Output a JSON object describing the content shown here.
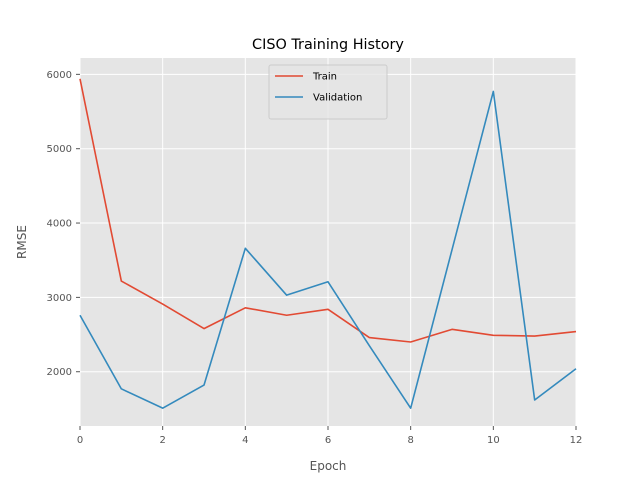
{
  "chart_data": {
    "type": "line",
    "title": "CISO Training History",
    "xlabel": "Epoch",
    "ylabel": "RMSE",
    "x": [
      0,
      1,
      2,
      3,
      4,
      5,
      6,
      7,
      8,
      9,
      10,
      11,
      12
    ],
    "xlim": [
      0,
      12
    ],
    "ylim": [
      1270,
      6220
    ],
    "xticks": [
      0,
      2,
      4,
      6,
      8,
      10,
      12
    ],
    "yticks": [
      2000,
      3000,
      4000,
      5000,
      6000
    ],
    "grid": true,
    "legend_position": "upper center",
    "series": [
      {
        "name": "Train",
        "color": "#E24A33",
        "values": [
          5940,
          3220,
          2910,
          2580,
          2860,
          2760,
          2840,
          2460,
          2400,
          2570,
          2490,
          2480,
          2540
        ]
      },
      {
        "name": "Validation",
        "color": "#348ABD",
        "values": [
          2760,
          1770,
          1510,
          1820,
          3660,
          3030,
          3210,
          2350,
          1510,
          3640,
          5770,
          1620,
          2040
        ]
      }
    ],
    "background_color": "#E5E5E5",
    "grid_color": "#FFFFFF"
  }
}
